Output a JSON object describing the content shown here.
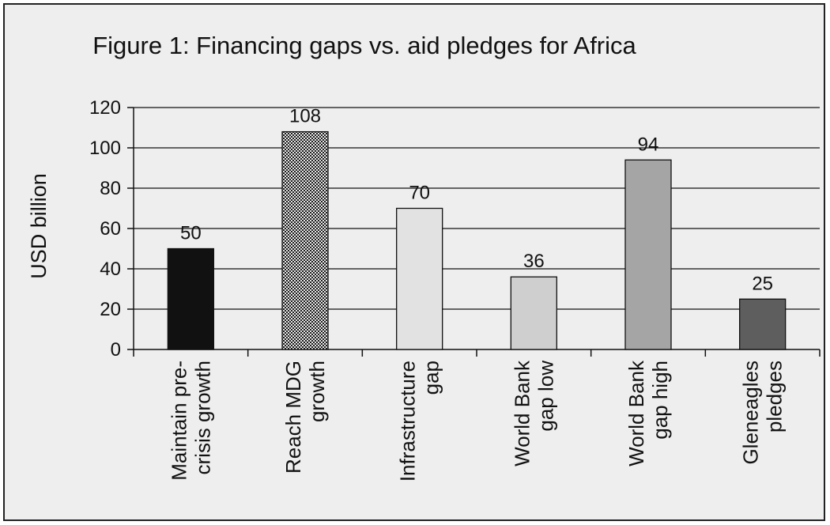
{
  "chart_data": {
    "type": "bar",
    "title": "Figure 1: Financing gaps vs. aid pledges for Africa",
    "xlabel": "",
    "ylabel": "USD billion",
    "ylim": [
      0,
      120
    ],
    "yticks": [
      0,
      20,
      40,
      60,
      80,
      100,
      120
    ],
    "grid": true,
    "legend": "none",
    "categories": [
      [
        "Maintain pre-",
        "crisis growth"
      ],
      [
        "Reach MDG",
        "growth"
      ],
      [
        "Infrastructure",
        "gap"
      ],
      [
        "World Bank",
        "gap low"
      ],
      [
        "World Bank",
        "gap high"
      ],
      [
        "Gleneagles",
        "pledges"
      ]
    ],
    "values": [
      50,
      108,
      70,
      36,
      94,
      25
    ],
    "data_labels": [
      "50",
      "108",
      "70",
      "36",
      "94",
      "25"
    ],
    "bar_colors": [
      "#111111",
      "#8a8a8a",
      "#e2e2e2",
      "#cfcfcf",
      "#a5a5a5",
      "#5e5e5e"
    ],
    "bar_patterns": [
      "solid",
      "checker",
      "solid",
      "solid",
      "solid",
      "solid"
    ],
    "colors": {
      "background": "#eeeeee",
      "frame": "#222222",
      "grid": "#111111"
    }
  }
}
